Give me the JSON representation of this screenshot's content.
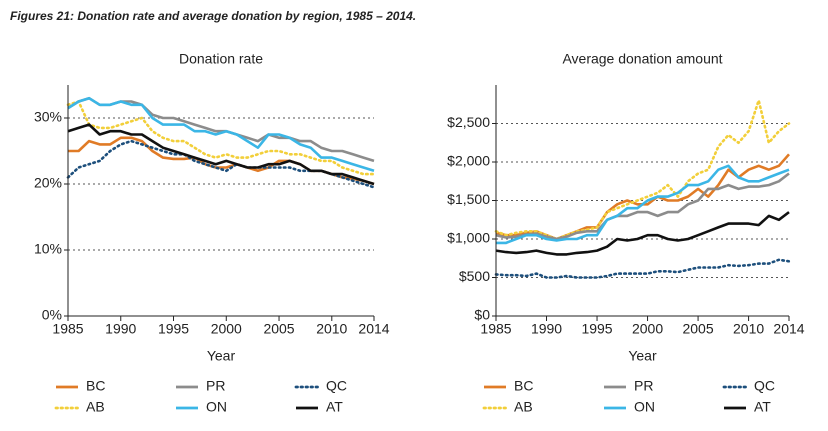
{
  "title": "Figures 21: Donation rate and average donation by region, 1985 – 2014.",
  "chart_data": [
    {
      "type": "line",
      "title": "Donation rate",
      "x_label": "Year",
      "x": [
        1985,
        1986,
        1987,
        1988,
        1989,
        1990,
        1991,
        1992,
        1993,
        1994,
        1995,
        1996,
        1997,
        1998,
        1999,
        2000,
        2001,
        2002,
        2003,
        2004,
        2005,
        2006,
        2007,
        2008,
        2009,
        2010,
        2011,
        2012,
        2013,
        2014
      ],
      "xlim": [
        1985,
        2014
      ],
      "xticks": [
        1985,
        1990,
        1995,
        2000,
        2005,
        2010,
        2014
      ],
      "ylim": [
        0,
        35
      ],
      "yticks": [
        {
          "value": 0,
          "label": "0%"
        },
        {
          "value": 10,
          "label": "10%"
        },
        {
          "value": 20,
          "label": "20%"
        },
        {
          "value": 30,
          "label": "30%"
        }
      ],
      "grid": true,
      "legend": "bottom",
      "series": [
        {
          "name": "BC",
          "color": "#e07b26",
          "dash": "solid",
          "values": [
            25,
            25,
            26.5,
            26,
            26,
            27,
            27,
            26.5,
            25,
            24,
            23.8,
            23.8,
            24,
            23,
            22.5,
            22.5,
            23,
            22.5,
            22,
            22.5,
            23.5,
            23.5,
            23,
            22,
            22,
            21.5,
            21,
            20.8,
            20.5,
            20
          ]
        },
        {
          "name": "AB",
          "color": "#f2cf3a",
          "dash": "dotted",
          "values": [
            32,
            32.5,
            29,
            28.5,
            28.5,
            29,
            29.5,
            30,
            28,
            27,
            26.5,
            26.5,
            25.5,
            24.5,
            24,
            24.5,
            24,
            24,
            24.5,
            25,
            25,
            24.5,
            24.5,
            24,
            23.5,
            23.5,
            22.5,
            22,
            21.5,
            21.5
          ]
        },
        {
          "name": "PR",
          "color": "#8c8c8c",
          "dash": "solid",
          "values": [
            31.5,
            32.5,
            33,
            32,
            32,
            32.5,
            32.5,
            32,
            30.5,
            30,
            30,
            29.5,
            29,
            28.5,
            28,
            28,
            27.5,
            27,
            26.5,
            27.5,
            27,
            27,
            26.5,
            26.5,
            25.5,
            25,
            25,
            24.5,
            24,
            23.5
          ]
        },
        {
          "name": "ON",
          "color": "#3bb6e6",
          "dash": "solid",
          "values": [
            31.5,
            32.5,
            33,
            32,
            32,
            32.5,
            32,
            32,
            30,
            29,
            29,
            29,
            28,
            28,
            27.5,
            28,
            27.5,
            26.5,
            25.5,
            27.5,
            27.5,
            27,
            26,
            25.5,
            24,
            24,
            23.5,
            23,
            22.5,
            22
          ]
        },
        {
          "name": "QC",
          "color": "#1d4f7c",
          "dash": "dotted",
          "values": [
            21,
            22.5,
            23,
            23.5,
            25,
            26,
            26.5,
            26,
            25.5,
            25,
            24.5,
            24.5,
            23.5,
            23,
            22.5,
            22,
            23,
            22.5,
            22.5,
            22.5,
            22.5,
            22.5,
            22,
            22,
            22,
            21.5,
            21,
            20.5,
            20,
            19.5
          ]
        },
        {
          "name": "AT",
          "color": "#111111",
          "dash": "solid",
          "values": [
            28,
            28.5,
            29,
            27.5,
            28,
            28,
            27.5,
            27.5,
            26.5,
            25.5,
            25,
            24.5,
            24,
            23.5,
            23,
            23.5,
            23,
            22.5,
            22.5,
            23,
            23,
            23.5,
            23,
            22,
            22,
            21.5,
            21.5,
            21,
            20.5,
            20
          ]
        }
      ]
    },
    {
      "type": "line",
      "title": "Average donation amount",
      "x_label": "Year",
      "x": [
        1985,
        1986,
        1987,
        1988,
        1989,
        1990,
        1991,
        1992,
        1993,
        1994,
        1995,
        1996,
        1997,
        1998,
        1999,
        2000,
        2001,
        2002,
        2003,
        2004,
        2005,
        2006,
        2007,
        2008,
        2009,
        2010,
        2011,
        2012,
        2013,
        2014
      ],
      "xlim": [
        1985,
        2014
      ],
      "xticks": [
        1985,
        1990,
        1995,
        2000,
        2005,
        2010,
        2014
      ],
      "ylim": [
        0,
        3000
      ],
      "yticks": [
        {
          "value": 0,
          "label": "$0"
        },
        {
          "value": 500,
          "label": "$500"
        },
        {
          "value": 1000,
          "label": "$1,000"
        },
        {
          "value": 1500,
          "label": "$1,500"
        },
        {
          "value": 2000,
          "label": "$2,000"
        },
        {
          "value": 2500,
          "label": "$2,500"
        }
      ],
      "grid": true,
      "legend": "bottom",
      "series": [
        {
          "name": "BC",
          "color": "#e07b26",
          "dash": "solid",
          "values": [
            1080,
            1050,
            1050,
            1080,
            1100,
            1050,
            1000,
            1050,
            1100,
            1150,
            1150,
            1350,
            1450,
            1500,
            1450,
            1450,
            1550,
            1500,
            1500,
            1550,
            1650,
            1550,
            1700,
            1900,
            1800,
            1900,
            1950,
            1900,
            1950,
            2100
          ]
        },
        {
          "name": "AB",
          "color": "#f2cf3a",
          "dash": "dotted",
          "values": [
            1100,
            1050,
            1080,
            1100,
            1100,
            1050,
            1000,
            1050,
            1100,
            1120,
            1150,
            1350,
            1400,
            1450,
            1500,
            1550,
            1600,
            1700,
            1550,
            1750,
            1850,
            1900,
            2200,
            2350,
            2250,
            2400,
            2800,
            2250,
            2400,
            2500
          ]
        },
        {
          "name": "PR",
          "color": "#8c8c8c",
          "dash": "solid",
          "values": [
            1050,
            1020,
            1030,
            1060,
            1070,
            1030,
            1000,
            1030,
            1080,
            1100,
            1100,
            1250,
            1300,
            1300,
            1350,
            1350,
            1300,
            1350,
            1350,
            1450,
            1500,
            1650,
            1650,
            1700,
            1650,
            1680,
            1680,
            1700,
            1750,
            1850
          ]
        },
        {
          "name": "ON",
          "color": "#3bb6e6",
          "dash": "solid",
          "values": [
            950,
            950,
            1000,
            1050,
            1050,
            1000,
            980,
            1000,
            1000,
            1050,
            1050,
            1250,
            1300,
            1400,
            1400,
            1500,
            1550,
            1550,
            1600,
            1700,
            1700,
            1750,
            1900,
            1950,
            1800,
            1750,
            1750,
            1800,
            1850,
            1900
          ]
        },
        {
          "name": "QC",
          "color": "#1d4f7c",
          "dash": "dotted",
          "values": [
            540,
            530,
            530,
            520,
            550,
            500,
            500,
            520,
            500,
            500,
            500,
            520,
            550,
            550,
            550,
            550,
            580,
            580,
            570,
            600,
            630,
            630,
            630,
            660,
            650,
            660,
            680,
            680,
            730,
            710
          ]
        },
        {
          "name": "AT",
          "color": "#111111",
          "dash": "solid",
          "values": [
            850,
            830,
            820,
            830,
            850,
            820,
            800,
            800,
            820,
            830,
            850,
            900,
            1000,
            980,
            1000,
            1050,
            1050,
            1000,
            980,
            1000,
            1050,
            1100,
            1150,
            1200,
            1200,
            1200,
            1180,
            1300,
            1250,
            1350
          ]
        }
      ]
    }
  ]
}
